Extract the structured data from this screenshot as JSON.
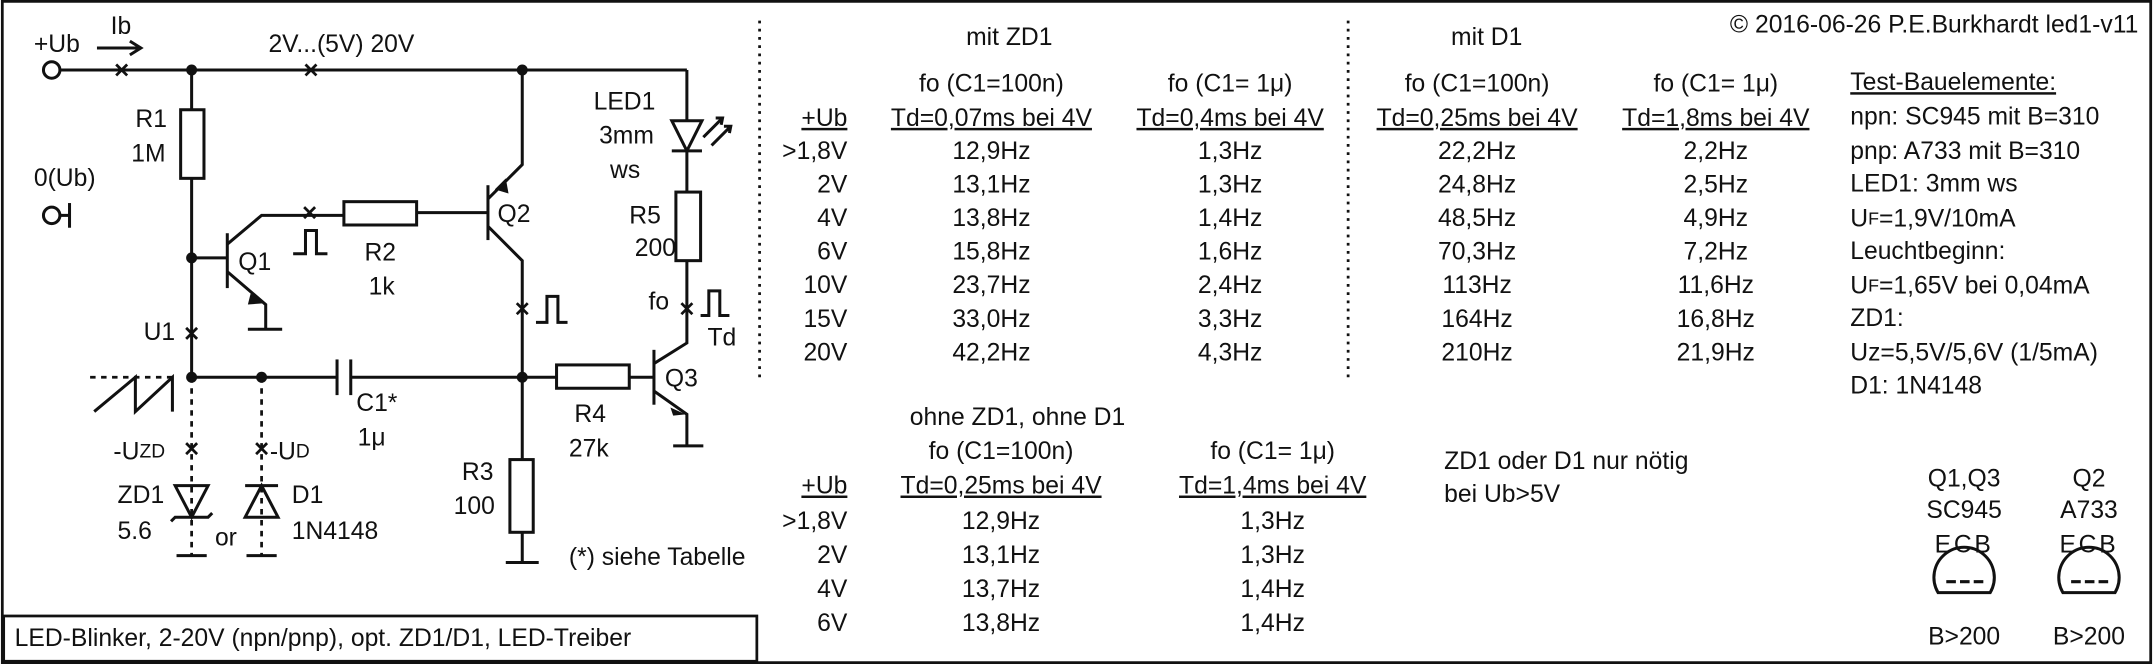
{
  "copyright": "© 2016-06-26 P.E.Burkhardt led1-v11",
  "caption": "LED-Blinker, 2-20V (npn/pnp), opt. ZD1/D1, LED-Treiber",
  "circuit": {
    "ub": "+Ub",
    "ib": "Ib",
    "range": "2V...(5V) 20V",
    "r1": "R1",
    "r1_val": "1M",
    "gnd": "0(Ub)",
    "q1": "Q1",
    "r2": "R2",
    "r2_val": "1k",
    "u1": "U1",
    "q2": "Q2",
    "led1": "LED1",
    "led1_size": "3mm",
    "led1_color": "ws",
    "r5": "R5",
    "r5_val": "200",
    "fo": "fo",
    "td": "Td",
    "q3": "Q3",
    "c1": "C1*",
    "c1_val": "1μ",
    "r4": "R4",
    "r4_val": "27k",
    "r3": "R3",
    "r3_val": "100",
    "uzd": {
      "main": "-U",
      "sub": "ZD"
    },
    "ud": {
      "main": "-U",
      "sub": "D"
    },
    "zd1": "ZD1",
    "zd1_val": "5.6",
    "or": "or",
    "d1": "D1",
    "d1_val": "1N4148",
    "note": "(*) siehe Tabelle"
  },
  "tables": [
    {
      "title": "mit ZD1",
      "ub_head": "+Ub",
      "col_heads": [
        {
          "line1": "fo (C1=100n)",
          "line2": "Td=0,07ms bei 4V"
        },
        {
          "line1": "fo (C1= 1μ)",
          "line2": "Td=0,4ms bei 4V"
        }
      ],
      "rows": [
        [
          ">1,8V",
          "12,9Hz",
          "1,3Hz"
        ],
        [
          "2V",
          "13,1Hz",
          "1,3Hz"
        ],
        [
          "4V",
          "13,8Hz",
          "1,4Hz"
        ],
        [
          "6V",
          "15,8Hz",
          "1,6Hz"
        ],
        [
          "10V",
          "23,7Hz",
          "2,4Hz"
        ],
        [
          "15V",
          "33,0Hz",
          "3,3Hz"
        ],
        [
          "20V",
          "42,2Hz",
          "4,3Hz"
        ]
      ]
    },
    {
      "title": "mit D1",
      "col_heads": [
        {
          "line1": "fo (C1=100n)",
          "line2": "Td=0,25ms bei 4V"
        },
        {
          "line1": "fo (C1= 1μ)",
          "line2": "Td=1,8ms bei 4V"
        }
      ],
      "rows": [
        [
          "22,2Hz",
          "2,2Hz"
        ],
        [
          "24,8Hz",
          "2,5Hz"
        ],
        [
          "48,5Hz",
          "4,9Hz"
        ],
        [
          "70,3Hz",
          "7,2Hz"
        ],
        [
          "113Hz",
          "11,6Hz"
        ],
        [
          "164Hz",
          "16,8Hz"
        ],
        [
          "210Hz",
          "21,9Hz"
        ]
      ]
    },
    {
      "title": "ohne ZD1, ohne D1",
      "ub_head": "+Ub",
      "col_heads": [
        {
          "line1": "fo (C1=100n)",
          "line2": "Td=0,25ms bei 4V"
        },
        {
          "line1": "fo (C1= 1μ)",
          "line2": "Td=1,4ms bei 4V"
        }
      ],
      "rows": [
        [
          ">1,8V",
          "12,9Hz",
          "1,3Hz"
        ],
        [
          "2V",
          "13,1Hz",
          "1,3Hz"
        ],
        [
          "4V",
          "13,7Hz",
          "1,4Hz"
        ],
        [
          "6V",
          "13,8Hz",
          "1,4Hz"
        ]
      ]
    }
  ],
  "zener_note": [
    "ZD1 oder D1 nur nötig",
    "bei Ub>5V"
  ],
  "components": {
    "title": "Test-Bauelemente:",
    "lines": [
      "npn: SC945 mit B=310",
      "pnp: A733 mit B=310",
      "LED1: 3mm ws"
    ],
    "uf": {
      "main": "U",
      "sub": "F",
      "rest": "=1,9V/10mA"
    },
    "start": "Leuchtbeginn:",
    "uf_start": {
      "main": "U",
      "sub": "F",
      "rest": "=1,65V bei 0,04mA"
    },
    "more": [
      "ZD1:",
      "Uz=5,5V/5,6V (1/5mA)",
      "D1: 1N4148"
    ]
  },
  "transistors": [
    {
      "name": "Q1,Q3",
      "type": "SC945",
      "pins": "ECB",
      "gain": "B>200"
    },
    {
      "name": "Q2",
      "type": "A733",
      "pins": "ECB",
      "gain": "B>200"
    }
  ]
}
